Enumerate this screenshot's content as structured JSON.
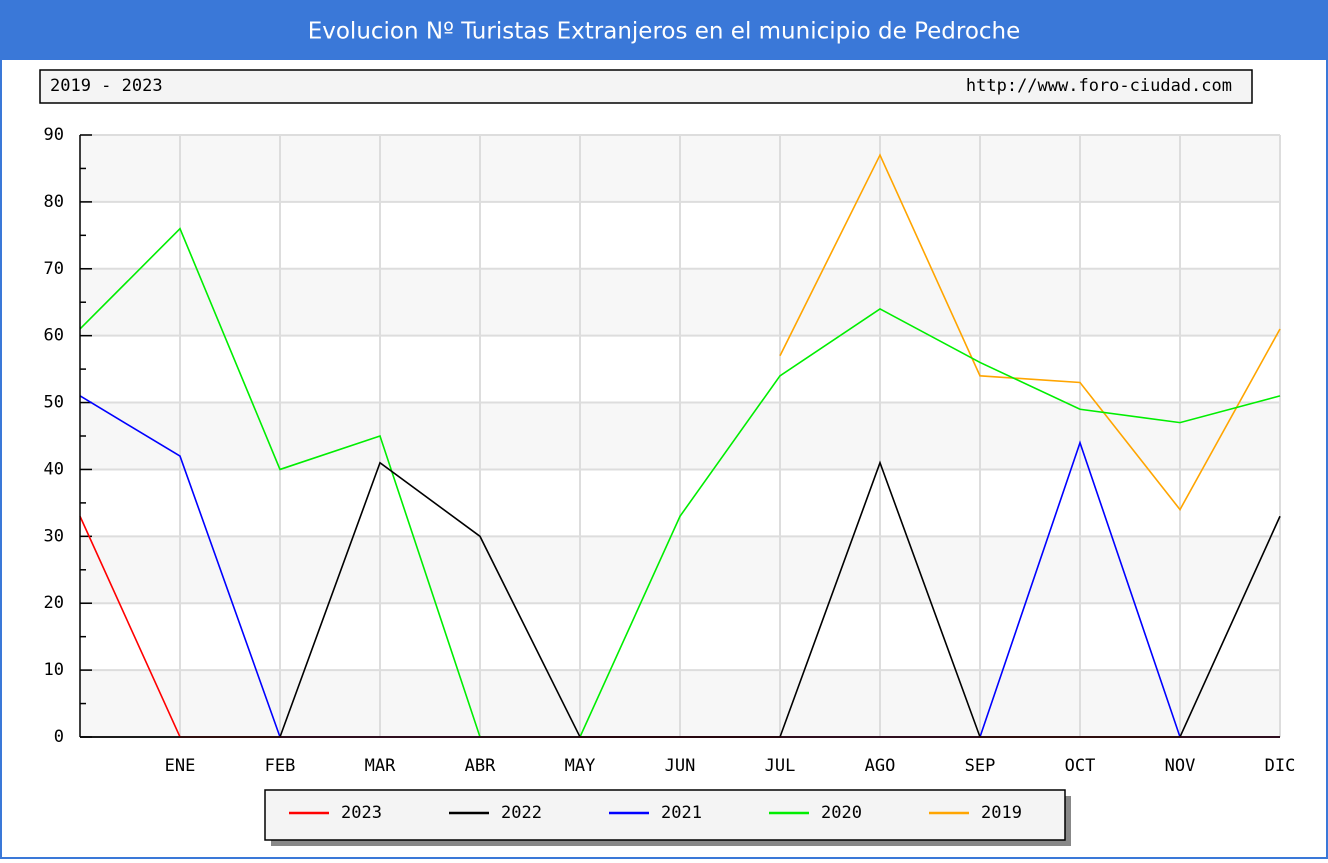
{
  "chart_data": {
    "type": "line",
    "title": "Evolucion Nº Turistas Extranjeros en el municipio de Pedroche",
    "subtitle": "2019 - 2023",
    "source": "http://www.foro-ciudad.com",
    "categories": [
      null,
      "ENE",
      "FEB",
      "MAR",
      "ABR",
      "MAY",
      "JUN",
      "JUL",
      "AGO",
      "SEP",
      "OCT",
      "NOV",
      "DIC"
    ],
    "series": [
      {
        "name": "2023",
        "color": "#ff0000",
        "values": [
          33,
          0,
          0,
          0,
          0,
          0,
          0,
          0,
          0,
          0,
          0,
          0,
          0
        ]
      },
      {
        "name": "2022",
        "color": "#000000",
        "values": [
          0,
          0,
          0,
          41,
          30,
          0,
          0,
          0,
          41,
          0,
          0,
          0,
          33
        ]
      },
      {
        "name": "2021",
        "color": "#0000ff",
        "values": [
          51,
          42,
          0,
          0,
          0,
          0,
          0,
          0,
          0,
          0,
          44,
          0,
          0
        ]
      },
      {
        "name": "2020",
        "color": "#00ee00",
        "values": [
          61,
          76,
          40,
          45,
          0,
          0,
          33,
          54,
          64,
          56,
          49,
          47,
          51
        ]
      },
      {
        "name": "2019",
        "color": "#ffa500",
        "values": [
          null,
          null,
          null,
          null,
          null,
          null,
          null,
          57,
          87,
          54,
          53,
          34,
          61
        ]
      }
    ],
    "ylim": [
      0,
      90
    ],
    "yticks": [
      0,
      10,
      20,
      30,
      40,
      50,
      60,
      70,
      80,
      90
    ],
    "grid": true
  }
}
